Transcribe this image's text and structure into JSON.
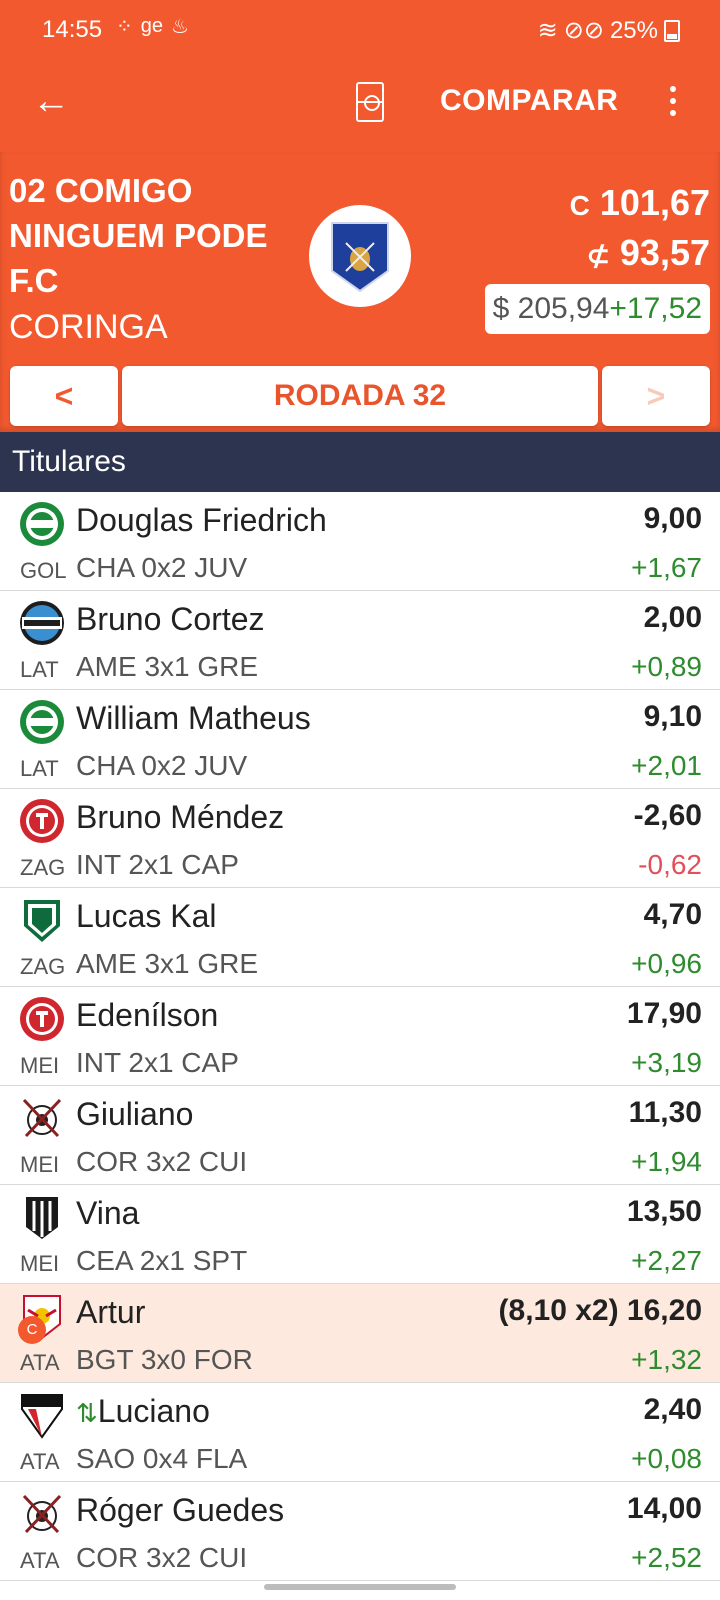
{
  "status_bar": {
    "time": "14:55",
    "app_icons": "ge",
    "battery": "25%"
  },
  "toolbar": {
    "compare_label": "COMPARAR"
  },
  "team": {
    "name": "02 COMIGO NINGUEM PODE F.C",
    "coach": "CORINGA",
    "stat1_symbol": "C",
    "stat1_value": "101,67",
    "stat2_symbol": "⊄",
    "stat2_value": "93,57",
    "patrimonio": "$ 205,94",
    "patrimonio_delta": "+17,52"
  },
  "round_nav": {
    "prev": "<",
    "label": "RODADA 32",
    "next": ">"
  },
  "section_title": "Titulares",
  "colors": {
    "brand": "#f2592f",
    "section": "#2c3450",
    "positive": "#2e8b2e",
    "negative": "#e0505a"
  },
  "players": [
    {
      "name": "Douglas Friedrich",
      "pos": "GOL",
      "match": "CHA 0x2 JUV",
      "points": "9,00",
      "var": "+1,67",
      "trend": "up",
      "club_icon": "juventude-crest-icon"
    },
    {
      "name": "Bruno Cortez",
      "pos": "LAT",
      "match": "AME 3x1 GRE",
      "points": "2,00",
      "var": "+0,89",
      "trend": "up",
      "club_icon": "gremio-crest-icon"
    },
    {
      "name": "William Matheus",
      "pos": "LAT",
      "match": "CHA 0x2 JUV",
      "points": "9,10",
      "var": "+2,01",
      "trend": "up",
      "club_icon": "juventude-crest-icon"
    },
    {
      "name": "Bruno Méndez",
      "pos": "ZAG",
      "match": "INT 2x1 CAP",
      "points": "-2,60",
      "var": "-0,62",
      "trend": "down",
      "club_icon": "internacional-crest-icon"
    },
    {
      "name": "Lucas Kal",
      "pos": "ZAG",
      "match": "AME 3x1 GRE",
      "points": "4,70",
      "var": "+0,96",
      "trend": "up",
      "club_icon": "america-mg-crest-icon"
    },
    {
      "name": "Edenílson",
      "pos": "MEI",
      "match": "INT 2x1 CAP",
      "points": "17,90",
      "var": "+3,19",
      "trend": "up",
      "club_icon": "internacional-crest-icon"
    },
    {
      "name": "Giuliano",
      "pos": "MEI",
      "match": "COR 3x2 CUI",
      "points": "11,30",
      "var": "+1,94",
      "trend": "up",
      "club_icon": "corinthians-crest-icon"
    },
    {
      "name": "Vina",
      "pos": "MEI",
      "match": "CEA 2x1 SPT",
      "points": "13,50",
      "var": "+2,27",
      "trend": "up",
      "club_icon": "ceara-crest-icon"
    },
    {
      "name": "Artur",
      "pos": "ATA",
      "match": "BGT 3x0 FOR",
      "points": "(8,10 x2) 16,20",
      "var": "+1,32",
      "trend": "up",
      "club_icon": "bragantino-crest-icon",
      "captain": true,
      "captain_label": "C"
    },
    {
      "name": "Luciano",
      "pos": "ATA",
      "match": "SAO 0x4 FLA",
      "points": "2,40",
      "var": "+0,08",
      "trend": "up",
      "club_icon": "sao-paulo-crest-icon",
      "swap_icon": "⇅"
    },
    {
      "name": "Róger Guedes",
      "pos": "ATA",
      "match": "COR 3x2 CUI",
      "points": "14,00",
      "var": "+2,52",
      "trend": "up",
      "club_icon": "corinthians-crest-icon"
    }
  ]
}
